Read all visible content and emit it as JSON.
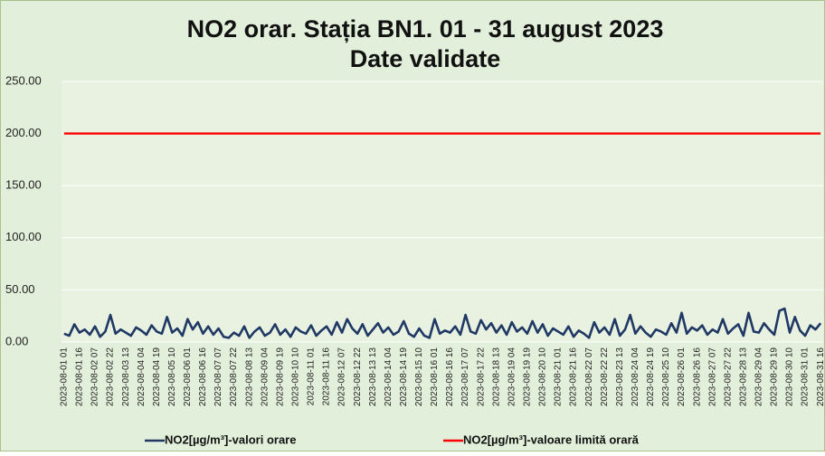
{
  "chart_data": {
    "type": "line",
    "title": "NO2 orar. Stația BN1. 01 - 31 august 2023",
    "subtitle": "Date validate",
    "categories": [
      "2023-08-01 01",
      null,
      null,
      "2023-08-01 16",
      null,
      null,
      "2023-08-02 07",
      null,
      null,
      "2023-08-02 22",
      null,
      null,
      "2023-08-03 13",
      null,
      null,
      "2023-08-04 04",
      null,
      null,
      "2023-08-04 19",
      null,
      null,
      "2023-08-05 10",
      null,
      null,
      "2023-08-06 01",
      null,
      null,
      "2023-08-06 16",
      null,
      null,
      "2023-08-07 07",
      null,
      null,
      "2023-08-07 22",
      null,
      null,
      "2023-08-08 13",
      null,
      null,
      "2023-08-09 04",
      null,
      null,
      "2023-08-09 19",
      null,
      null,
      "2023-08-10 10",
      null,
      null,
      "2023-08-11 01",
      null,
      null,
      "2023-08-11 16",
      null,
      null,
      "2023-08-12 07",
      null,
      null,
      "2023-08-12 22",
      null,
      null,
      "2023-08-13 13",
      null,
      null,
      "2023-08-14 04",
      null,
      null,
      "2023-08-14 19",
      null,
      null,
      "2023-08-15 10",
      null,
      null,
      "2023-08-16 01",
      null,
      null,
      "2023-08-16 16",
      null,
      null,
      "2023-08-17 07",
      null,
      null,
      "2023-08-17 22",
      null,
      null,
      "2023-08-18 13",
      null,
      null,
      "2023-08-19 04",
      null,
      null,
      "2023-08-19 19",
      null,
      null,
      "2023-08-20 10",
      null,
      null,
      "2023-08-21 01",
      null,
      null,
      "2023-08-21 16",
      null,
      null,
      "2023-08-22 07",
      null,
      null,
      "2023-08-22 22",
      null,
      null,
      "2023-08-23 13",
      null,
      null,
      "2023-08-24 04",
      null,
      null,
      "2023-08-24 19",
      null,
      null,
      "2023-08-25 10",
      null,
      null,
      "2023-08-26 01",
      null,
      null,
      "2023-08-26 16",
      null,
      null,
      "2023-08-27 07",
      null,
      null,
      "2023-08-27 22",
      null,
      null,
      "2023-08-28 13",
      null,
      null,
      "2023-08-29 04",
      null,
      null,
      "2023-08-29 19",
      null,
      null,
      "2023-08-30 10",
      null,
      null,
      "2023-08-31 01",
      null,
      null,
      "2023-08-31 16"
    ],
    "series": [
      {
        "name": "NO2[µg/m³]-valori orare",
        "color": "#1f3864",
        "values": [
          8,
          6,
          17,
          9,
          12,
          7,
          15,
          5,
          10,
          26,
          8,
          12,
          9,
          6,
          14,
          11,
          7,
          16,
          10,
          8,
          24,
          9,
          13,
          6,
          22,
          12,
          19,
          8,
          15,
          7,
          13,
          5,
          4,
          9,
          6,
          15,
          4,
          10,
          14,
          6,
          9,
          17,
          7,
          12,
          5,
          14,
          10,
          8,
          16,
          6,
          11,
          15,
          7,
          19,
          9,
          22,
          13,
          8,
          17,
          6,
          12,
          18,
          9,
          14,
          7,
          10,
          20,
          8,
          5,
          13,
          6,
          4,
          22,
          8,
          11,
          9,
          15,
          7,
          26,
          10,
          8,
          21,
          12,
          18,
          9,
          16,
          7,
          19,
          10,
          14,
          8,
          20,
          9,
          17,
          6,
          13,
          10,
          7,
          15,
          5,
          11,
          8,
          4,
          19,
          9,
          14,
          7,
          22,
          6,
          12,
          26,
          8,
          15,
          9,
          5,
          12,
          10,
          7,
          18,
          9,
          28,
          8,
          14,
          11,
          16,
          7,
          12,
          9,
          22,
          8,
          13,
          17,
          6,
          28,
          10,
          9,
          18,
          12,
          7,
          30,
          32,
          9,
          24,
          11,
          6,
          16,
          12,
          18
        ]
      },
      {
        "name": "NO2[µg/m³]-valoare limită orară",
        "color": "#ff0000",
        "values": [
          200,
          200,
          200,
          200,
          200,
          200,
          200,
          200,
          200,
          200,
          200,
          200,
          200,
          200,
          200,
          200,
          200,
          200,
          200,
          200,
          200,
          200,
          200,
          200,
          200,
          200,
          200,
          200,
          200,
          200,
          200,
          200,
          200,
          200,
          200,
          200,
          200,
          200,
          200,
          200,
          200,
          200,
          200,
          200,
          200,
          200,
          200,
          200,
          200,
          200,
          200,
          200,
          200,
          200,
          200,
          200,
          200,
          200,
          200,
          200,
          200,
          200,
          200,
          200,
          200,
          200,
          200,
          200,
          200,
          200,
          200,
          200,
          200,
          200,
          200,
          200,
          200,
          200,
          200,
          200,
          200,
          200,
          200,
          200,
          200,
          200,
          200,
          200,
          200,
          200,
          200,
          200,
          200,
          200,
          200,
          200,
          200,
          200,
          200,
          200,
          200,
          200,
          200,
          200,
          200,
          200,
          200,
          200,
          200,
          200,
          200,
          200,
          200,
          200,
          200,
          200,
          200,
          200,
          200,
          200,
          200,
          200,
          200,
          200,
          200,
          200,
          200,
          200,
          200,
          200,
          200,
          200,
          200,
          200,
          200,
          200,
          200,
          200,
          200,
          200,
          200,
          200,
          200,
          200,
          200,
          200,
          200,
          200
        ]
      }
    ],
    "ylim": [
      0,
      250
    ],
    "yticks": [
      {
        "value": 0,
        "label": "0.00"
      },
      {
        "value": 50,
        "label": "50.00"
      },
      {
        "value": 100,
        "label": "100.00"
      },
      {
        "value": 150,
        "label": "150.00"
      },
      {
        "value": 200,
        "label": "200.00"
      },
      {
        "value": 250,
        "label": "250.00"
      }
    ],
    "grid": true,
    "legend": "bottom"
  }
}
